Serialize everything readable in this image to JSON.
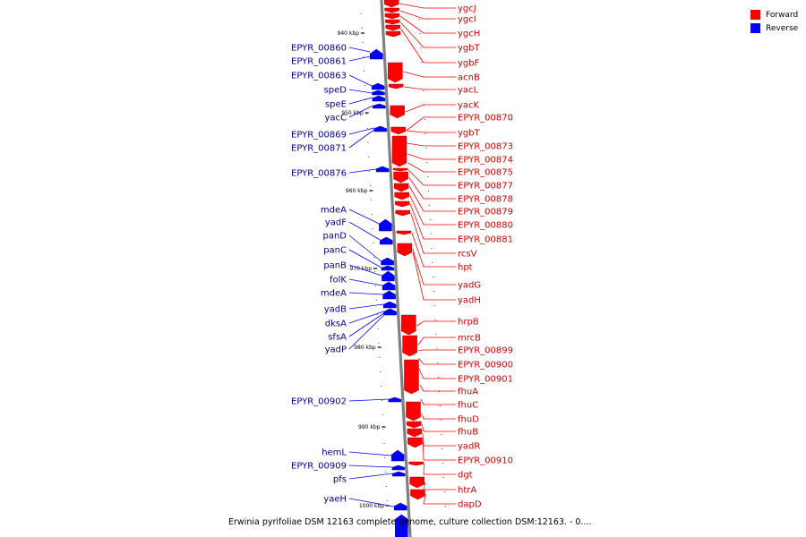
{
  "legend": [
    {
      "label": "Forward",
      "color": "#ff0000"
    },
    {
      "label": "Reverse",
      "color": "#0000ff"
    }
  ],
  "caption": "Erwinia pyrifoliae DSM 12163 complete genome, culture collection DSM:12163. - 0....",
  "colors": {
    "forward": "#ff0000",
    "reverse": "#0000ff",
    "forward_label": "#cc0000",
    "reverse_label": "#00008b",
    "axis": "#808080"
  },
  "ticks": [
    "940 kbp",
    "950 kbp",
    "960 kbp",
    "970 kbp",
    "980 kbp",
    "990 kbp",
    "1000 kbp"
  ],
  "forward_genes": [
    "ygcJ",
    "ygcI",
    "ygcH",
    "ygbT",
    "ygbF",
    "acnB",
    "yacL",
    "yacK",
    "EPYR_00870",
    "ygbT",
    "EPYR_00873",
    "EPYR_00874",
    "EPYR_00875",
    "EPYR_00877",
    "EPYR_00878",
    "EPYR_00879",
    "EPYR_00880",
    "EPYR_00881",
    "rcsV",
    "hpt",
    "yadG",
    "yadH",
    "hrpB",
    "mrcB",
    "EPYR_00899",
    "EPYR_00900",
    "EPYR_00901",
    "fhuA",
    "fhuC",
    "fhuD",
    "fhuB",
    "yadR",
    "EPYR_00910",
    "dgt",
    "htrA",
    "dapD"
  ],
  "reverse_genes": [
    "EPYR_00860",
    "EPYR_00861",
    "EPYR_00863",
    "speD",
    "speE",
    "yacC",
    "EPYR_00869",
    "EPYR_00871",
    "EPYR_00876",
    "mdeA",
    "yadF",
    "panD",
    "panC",
    "panB",
    "folK",
    "mdeA",
    "yadB",
    "dksA",
    "sfsA",
    "yadP",
    "EPYR_00902",
    "hemL",
    "EPYR_00909",
    "pfs",
    "yaeH"
  ]
}
